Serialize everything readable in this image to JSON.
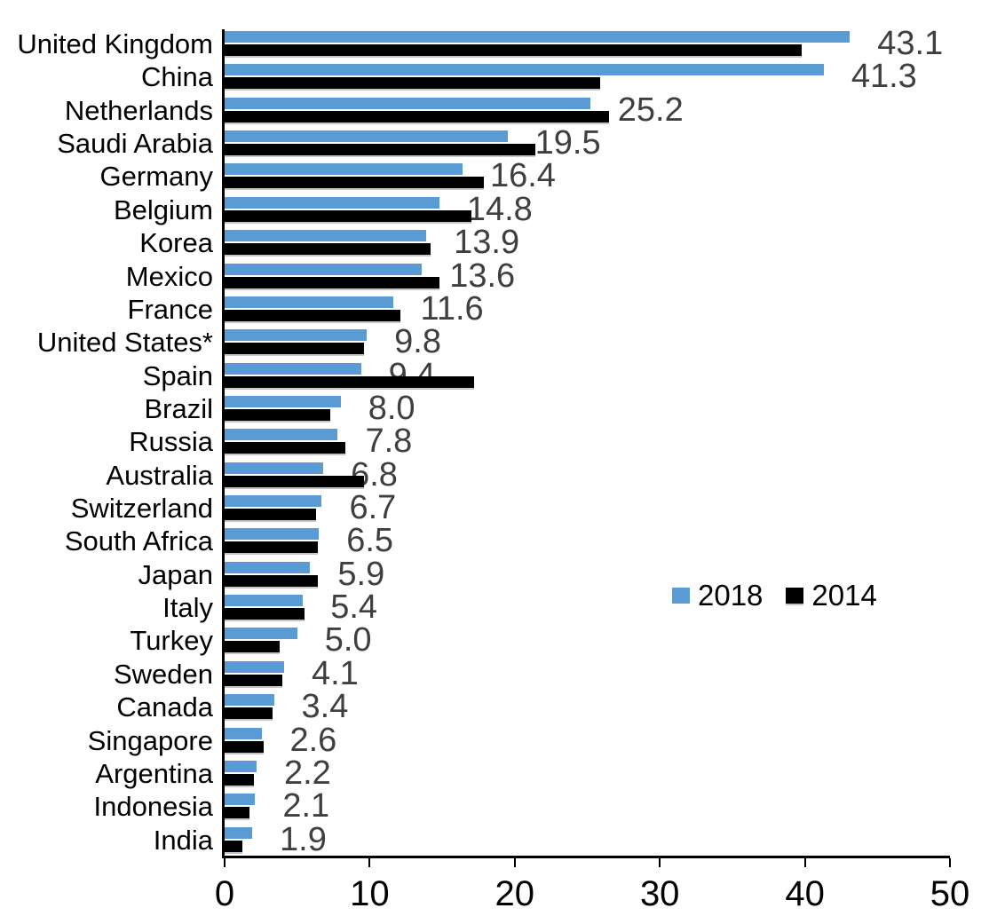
{
  "chart_data": {
    "type": "bar",
    "orientation": "horizontal",
    "title": "",
    "xlabel": "",
    "ylabel": "",
    "xlim": [
      0,
      50
    ],
    "x_ticks": [
      0,
      10,
      20,
      30,
      40,
      50
    ],
    "x_tick_labels": [
      "0",
      "10",
      "20",
      "30",
      "40",
      "50"
    ],
    "grid": false,
    "legend_position": "middle-right",
    "categories": [
      "United Kingdom",
      "China",
      "Netherlands",
      "Saudi Arabia",
      "Germany",
      "Belgium",
      "Korea",
      "Mexico",
      "France",
      "United States*",
      "Spain",
      "Brazil",
      "Russia",
      "Australia",
      "Switzerland",
      "South Africa",
      "Japan",
      "Italy",
      "Turkey",
      "Sweden",
      "Canada",
      "Singapore",
      "Argentina",
      "Indonesia",
      "India"
    ],
    "series": [
      {
        "name": "2018",
        "color": "#5B9BD5",
        "values": [
          43.1,
          41.3,
          25.2,
          19.5,
          16.4,
          14.8,
          13.9,
          13.6,
          11.6,
          9.8,
          9.4,
          8.0,
          7.8,
          6.8,
          6.7,
          6.5,
          5.9,
          5.4,
          5.0,
          4.1,
          3.4,
          2.6,
          2.2,
          2.1,
          1.9
        ]
      },
      {
        "name": "2014",
        "color": "#000000",
        "values": [
          39.8,
          25.9,
          26.5,
          21.4,
          17.9,
          17.0,
          14.2,
          14.8,
          12.1,
          9.6,
          17.2,
          7.3,
          8.3,
          9.6,
          6.3,
          6.4,
          6.4,
          5.5,
          3.8,
          4.0,
          3.3,
          2.7,
          2.0,
          1.7,
          1.2
        ]
      }
    ],
    "data_labels": {
      "series": "2018",
      "color": "#3F3F3F",
      "values": [
        "43.1",
        "41.3",
        "25.2",
        "19.5",
        "16.4",
        "14.8",
        "13.9",
        "13.6",
        "11.6",
        "9.8",
        "9.4",
        "8.0",
        "7.8",
        "6.8",
        "6.7",
        "6.5",
        "5.9",
        "5.4",
        "5.0",
        "4.1",
        "3.4",
        "2.6",
        "2.2",
        "2.1",
        "1.9"
      ]
    }
  },
  "legend": {
    "items": [
      {
        "label": "2018",
        "color": "#5B9BD5"
      },
      {
        "label": "2014",
        "color": "#000000"
      }
    ]
  },
  "colors": {
    "series_2018": "#5B9BD5",
    "series_2014": "#000000",
    "data_label": "#3F3F3F",
    "axis": "#000000",
    "background": "#FFFFFF"
  }
}
